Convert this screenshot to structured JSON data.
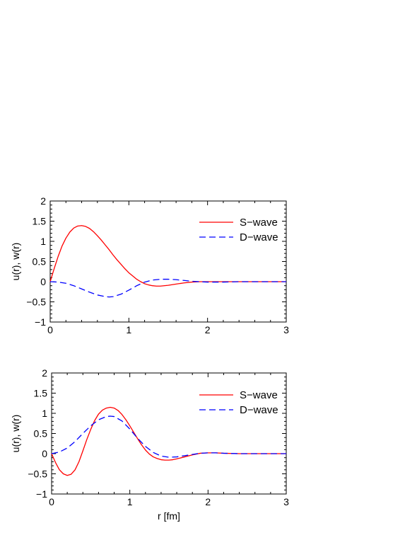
{
  "chart_data": [
    {
      "type": "line",
      "xlabel": "",
      "ylabel": "u(r), w(r)",
      "xlim": [
        0,
        3
      ],
      "ylim": [
        -1,
        2
      ],
      "xticks": [
        0,
        1,
        2,
        3
      ],
      "yticks": [
        -1,
        -0.5,
        0,
        0.5,
        1,
        1.5,
        2
      ],
      "xtick_labels": [
        "0",
        "1",
        "2",
        "3"
      ],
      "ytick_labels": [
        "−1",
        "−0.5",
        "0",
        "0.5",
        "1",
        "1.5",
        "2"
      ],
      "legend_position": "top-right",
      "series": [
        {
          "name": "S−wave",
          "color": "#ff0000",
          "dash": "solid",
          "x": [
            0,
            0.05,
            0.1,
            0.15,
            0.2,
            0.25,
            0.3,
            0.35,
            0.4,
            0.45,
            0.5,
            0.55,
            0.6,
            0.65,
            0.7,
            0.75,
            0.8,
            0.85,
            0.9,
            0.95,
            1.0,
            1.05,
            1.1,
            1.15,
            1.2,
            1.25,
            1.3,
            1.35,
            1.4,
            1.5,
            1.6,
            1.7,
            1.8,
            1.9,
            2.0,
            2.2,
            2.4,
            2.6,
            2.8,
            3.0
          ],
          "y": [
            0,
            0.32,
            0.62,
            0.88,
            1.08,
            1.23,
            1.33,
            1.38,
            1.39,
            1.37,
            1.32,
            1.24,
            1.14,
            1.03,
            0.91,
            0.79,
            0.66,
            0.54,
            0.43,
            0.32,
            0.22,
            0.14,
            0.06,
            0.0,
            -0.05,
            -0.08,
            -0.1,
            -0.11,
            -0.11,
            -0.09,
            -0.06,
            -0.03,
            -0.01,
            0.0,
            0.0,
            0.0,
            0.0,
            0.0,
            0.0,
            0.0
          ]
        },
        {
          "name": "D−wave",
          "color": "#0000ff",
          "dash": "dashed",
          "x": [
            0,
            0.1,
            0.2,
            0.3,
            0.4,
            0.5,
            0.6,
            0.7,
            0.75,
            0.8,
            0.9,
            1.0,
            1.1,
            1.2,
            1.3,
            1.4,
            1.5,
            1.6,
            1.7,
            1.8,
            1.9,
            2.0,
            2.1,
            2.2,
            2.4,
            2.6,
            2.8,
            3.0
          ],
          "y": [
            0,
            -0.01,
            -0.04,
            -0.1,
            -0.18,
            -0.26,
            -0.33,
            -0.37,
            -0.38,
            -0.37,
            -0.31,
            -0.21,
            -0.1,
            -0.01,
            0.04,
            0.06,
            0.06,
            0.05,
            0.03,
            0.01,
            0.0,
            -0.01,
            -0.01,
            -0.01,
            0.0,
            0.0,
            0.0,
            0.0
          ]
        }
      ]
    },
    {
      "type": "line",
      "xlabel": "r [fm]",
      "ylabel": "u(r), w(r)",
      "xlim": [
        0,
        3
      ],
      "ylim": [
        -1,
        2
      ],
      "xticks": [
        0,
        1,
        2,
        3
      ],
      "yticks": [
        -1,
        -0.5,
        0,
        0.5,
        1,
        1.5,
        2
      ],
      "xtick_labels": [
        "0",
        "1",
        "2",
        "3"
      ],
      "ytick_labels": [
        "−1",
        "−0.5",
        "0",
        "0.5",
        "1",
        "1.5",
        "2"
      ],
      "legend_position": "top-right",
      "series": [
        {
          "name": "S−wave",
          "color": "#ff0000",
          "dash": "solid",
          "x": [
            0,
            0.05,
            0.1,
            0.15,
            0.2,
            0.25,
            0.3,
            0.35,
            0.4,
            0.45,
            0.5,
            0.55,
            0.6,
            0.65,
            0.7,
            0.75,
            0.8,
            0.85,
            0.9,
            0.95,
            1.0,
            1.05,
            1.1,
            1.15,
            1.2,
            1.25,
            1.3,
            1.35,
            1.4,
            1.45,
            1.5,
            1.55,
            1.6,
            1.7,
            1.8,
            1.9,
            2.0,
            2.1,
            2.2,
            2.4,
            2.6,
            2.8,
            3.0
          ],
          "y": [
            0,
            -0.22,
            -0.4,
            -0.5,
            -0.54,
            -0.51,
            -0.4,
            -0.2,
            0.07,
            0.35,
            0.6,
            0.82,
            0.98,
            1.08,
            1.13,
            1.15,
            1.13,
            1.07,
            0.97,
            0.84,
            0.69,
            0.53,
            0.37,
            0.22,
            0.09,
            -0.01,
            -0.08,
            -0.12,
            -0.15,
            -0.16,
            -0.16,
            -0.15,
            -0.13,
            -0.08,
            -0.03,
            0.01,
            0.02,
            0.02,
            0.01,
            0.0,
            0.0,
            0.0,
            0.0
          ]
        },
        {
          "name": "D−wave",
          "color": "#0000ff",
          "dash": "dashed",
          "x": [
            0,
            0.1,
            0.2,
            0.3,
            0.4,
            0.5,
            0.6,
            0.7,
            0.75,
            0.8,
            0.9,
            1.0,
            1.1,
            1.2,
            1.3,
            1.4,
            1.5,
            1.6,
            1.7,
            1.8,
            1.9,
            2.0,
            2.1,
            2.2,
            2.4,
            2.6,
            2.8,
            3.0
          ],
          "y": [
            0,
            0.04,
            0.14,
            0.3,
            0.5,
            0.69,
            0.84,
            0.92,
            0.93,
            0.92,
            0.81,
            0.61,
            0.38,
            0.18,
            0.03,
            -0.06,
            -0.09,
            -0.08,
            -0.05,
            -0.02,
            0.01,
            0.02,
            0.02,
            0.01,
            0.0,
            0.0,
            0.0,
            0.0
          ]
        }
      ]
    }
  ]
}
